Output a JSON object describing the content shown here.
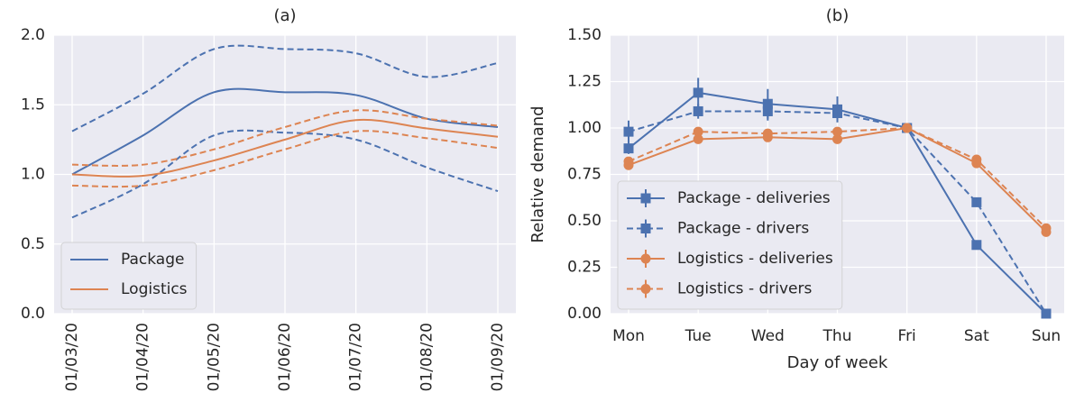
{
  "chart_data": [
    {
      "type": "line",
      "title": "(a)",
      "categories": [
        "01/03/20",
        "01/04/20",
        "01/05/20",
        "01/06/20",
        "01/07/20",
        "01/08/20",
        "01/09/20"
      ],
      "series": [
        {
          "name": "Package",
          "color": "#4c72b0",
          "linestyle": "solid",
          "values": [
            1.0,
            1.28,
            1.59,
            1.59,
            1.57,
            1.4,
            1.34
          ],
          "upper": [
            1.31,
            1.58,
            1.9,
            1.9,
            1.87,
            1.7,
            1.8
          ],
          "lower": [
            0.69,
            0.93,
            1.28,
            1.3,
            1.25,
            1.05,
            0.88
          ]
        },
        {
          "name": "Logistics",
          "color": "#dd8452",
          "linestyle": "solid",
          "values": [
            1.0,
            0.99,
            1.1,
            1.25,
            1.39,
            1.33,
            1.27
          ],
          "upper": [
            1.07,
            1.07,
            1.18,
            1.34,
            1.46,
            1.4,
            1.35
          ],
          "lower": [
            0.92,
            0.92,
            1.03,
            1.18,
            1.31,
            1.26,
            1.19
          ]
        }
      ],
      "ylim": [
        0,
        2
      ],
      "yticks": [
        {
          "value": 0,
          "label": "0.0"
        },
        {
          "value": 0.5,
          "label": "0.5"
        },
        {
          "value": 1,
          "label": "1.0"
        },
        {
          "value": 1.5,
          "label": "1.5"
        },
        {
          "value": 2,
          "label": "2.0"
        }
      ],
      "grid": true,
      "legend": "lower left"
    },
    {
      "type": "line",
      "title": "(b)",
      "xlabel": "Day of week",
      "ylabel": "Relative demand",
      "categories": [
        "Mon",
        "Tue",
        "Wed",
        "Thu",
        "Fri",
        "Sat",
        "Sun"
      ],
      "series": [
        {
          "name": "Package - deliveries",
          "color": "#4c72b0",
          "linestyle": "solid",
          "marker": "square",
          "values": [
            0.89,
            1.19,
            1.13,
            1.1,
            1.0,
            0.37,
            0.0
          ],
          "errors": [
            0.03,
            0.08,
            0.08,
            0.07,
            0,
            0.02,
            0
          ]
        },
        {
          "name": "Package - drivers",
          "color": "#4c72b0",
          "linestyle": "dashed",
          "marker": "square",
          "values": [
            0.98,
            1.09,
            1.09,
            1.08,
            1.0,
            0.6,
            0.0
          ],
          "errors": [
            0.06,
            0.04,
            0.05,
            0.03,
            0,
            0.02,
            0
          ]
        },
        {
          "name": "Logistics - deliveries",
          "color": "#dd8452",
          "linestyle": "solid",
          "marker": "circle",
          "values": [
            0.8,
            0.94,
            0.95,
            0.94,
            1.0,
            0.81,
            0.44
          ],
          "errors": [
            0.02,
            0.02,
            0.02,
            0.02,
            0,
            0.02,
            0.02
          ]
        },
        {
          "name": "Logistics - drivers",
          "color": "#dd8452",
          "linestyle": "dashed",
          "marker": "circle",
          "values": [
            0.82,
            0.98,
            0.97,
            0.98,
            1.0,
            0.83,
            0.46
          ],
          "errors": [
            0.02,
            0.02,
            0.02,
            0.02,
            0,
            0.02,
            0.02
          ]
        }
      ],
      "ylim": [
        0,
        1.5
      ],
      "yticks": [
        {
          "value": 0,
          "label": "0.00"
        },
        {
          "value": 0.25,
          "label": "0.25"
        },
        {
          "value": 0.5,
          "label": "0.50"
        },
        {
          "value": 0.75,
          "label": "0.75"
        },
        {
          "value": 1,
          "label": "1.00"
        },
        {
          "value": 1.25,
          "label": "1.25"
        },
        {
          "value": 1.5,
          "label": "1.50"
        }
      ],
      "grid": true,
      "legend": "lower left"
    }
  ]
}
